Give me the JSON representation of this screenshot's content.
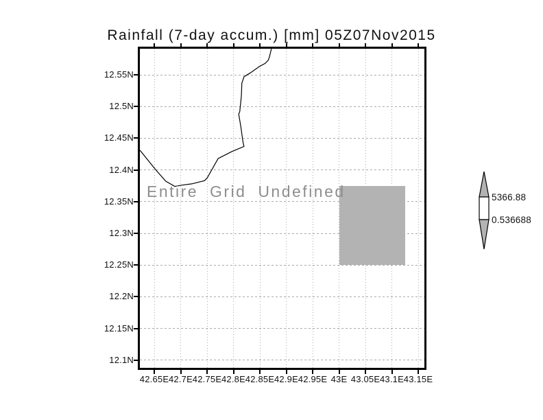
{
  "chart_data": {
    "type": "heatmap",
    "title": "Rainfall (7-day accum.) [mm] 05Z07Nov2015",
    "annotation": "Entire Grid Undefined",
    "x_tick_labels": [
      "42.65E",
      "42.7E",
      "42.75E",
      "42.8E",
      "42.85E",
      "42.9E",
      "42.95E",
      "43E",
      "43.05E",
      "43.1E",
      "43.15E"
    ],
    "y_tick_labels": [
      "12.55N",
      "12.5N",
      "12.45N",
      "12.4N",
      "12.35N",
      "12.3N",
      "12.25N",
      "12.2N",
      "12.15N",
      "12.1N"
    ],
    "x_ticks_deg": [
      42.65,
      42.7,
      42.75,
      42.8,
      42.85,
      42.9,
      42.95,
      43.0,
      43.05,
      43.1,
      43.15
    ],
    "y_ticks_deg": [
      12.55,
      12.5,
      12.45,
      12.4,
      12.35,
      12.3,
      12.25,
      12.2,
      12.15,
      12.1
    ],
    "xlim": [
      42.623,
      43.162
    ],
    "ylim": [
      12.088,
      12.591
    ],
    "grid": true,
    "legend_position": "right",
    "colorbar": {
      "max_label": "5366.88",
      "min_label": "0.536688",
      "max": 5366.88,
      "min": 0.536688
    },
    "undefined_region": {
      "lon": [
        43.0,
        43.125
      ],
      "lat": [
        12.25,
        12.375
      ]
    },
    "coastline_lonlat": [
      [
        42.872,
        12.591
      ],
      [
        42.868,
        12.578
      ],
      [
        42.866,
        12.573
      ],
      [
        42.86,
        12.568
      ],
      [
        42.849,
        12.563
      ],
      [
        42.832,
        12.553
      ],
      [
        42.82,
        12.547
      ],
      [
        42.818,
        12.542
      ],
      [
        42.816,
        12.537
      ],
      [
        42.815,
        12.516
      ],
      [
        42.812,
        12.492
      ],
      [
        42.81,
        12.488
      ],
      [
        42.814,
        12.468
      ],
      [
        42.818,
        12.444
      ],
      [
        42.82,
        12.437
      ],
      [
        42.797,
        12.429
      ],
      [
        42.771,
        12.418
      ],
      [
        42.75,
        12.387
      ],
      [
        42.745,
        12.383
      ],
      [
        42.721,
        12.378
      ],
      [
        42.702,
        12.376
      ],
      [
        42.689,
        12.374
      ],
      [
        42.672,
        12.382
      ],
      [
        42.653,
        12.4
      ],
      [
        42.623,
        12.431
      ]
    ]
  },
  "colors": {
    "background": "#ffffff",
    "frame": "#000000",
    "grid": "#aaaaaa",
    "coastline": "#000000",
    "undefined_fill": "#b3b3b3",
    "annotation_text": "#8e8e8e",
    "colorbar_arrow_fill": "#b3b3b3",
    "colorbar_box_fill": "#ffffff"
  }
}
